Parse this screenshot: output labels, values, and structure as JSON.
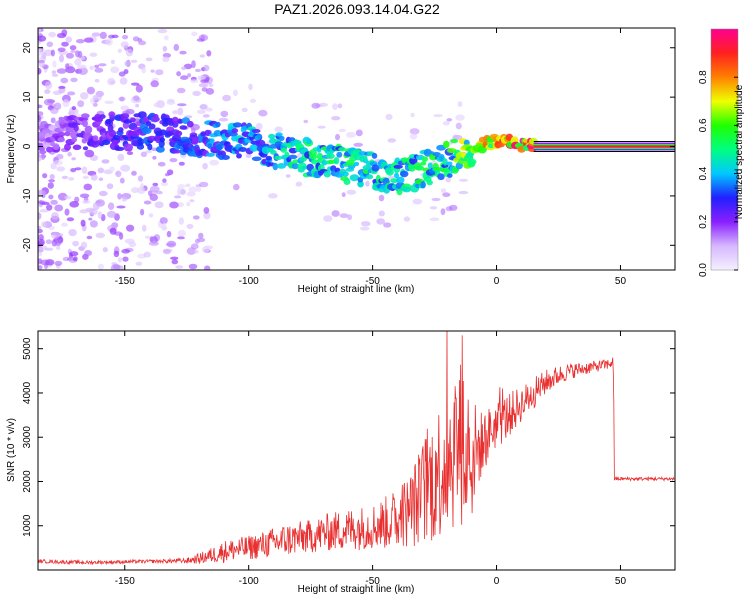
{
  "title": "PAZ1.2026.093.14.04.G22",
  "chart_data": [
    {
      "type": "heatmap",
      "xlabel": "Height of straight line (km)",
      "ylabel": "Frequency (Hz)",
      "xlim": [
        -185,
        72
      ],
      "ylim": [
        -25,
        24
      ],
      "xticks": [
        -150,
        -100,
        -50,
        0,
        50
      ],
      "xtick_labels": [
        "-150",
        "-100",
        "-50",
        "0",
        "50"
      ],
      "yticks": [
        -20,
        -10,
        0,
        10,
        20
      ],
      "ytick_labels": [
        "-20",
        "-10",
        "0",
        "10",
        "20"
      ],
      "colorbar": {
        "label": "Normalized spectral amplitude",
        "range": [
          0,
          1
        ],
        "ticks": [
          0.0,
          0.2,
          0.4,
          0.6,
          0.8
        ],
        "tick_labels": [
          "0.0",
          "0.2",
          "0.4",
          "0.6",
          "0.8"
        ],
        "colors": [
          "#f5f0ff",
          "#d6b8ff",
          "#8a20ff",
          "#2020ff",
          "#00c8ff",
          "#00ff80",
          "#20ff00",
          "#f0ff00",
          "#ff8000",
          "#ff2020",
          "#ff0090"
        ]
      },
      "ridge": {
        "x": [
          -185,
          -160,
          -140,
          -120,
          -100,
          -80,
          -60,
          -40,
          -20,
          -10,
          0,
          10,
          15,
          30,
          50,
          72
        ],
        "freq": [
          2,
          3,
          3,
          1.5,
          1,
          -2,
          -4,
          -6,
          -3,
          0,
          1,
          0.5,
          0,
          0,
          0,
          0
        ],
        "amplitude": [
          0.15,
          0.28,
          0.33,
          0.35,
          0.42,
          0.5,
          0.52,
          0.5,
          0.55,
          0.72,
          0.85,
          0.9,
          0.97,
          0.97,
          0.97,
          0.97
        ]
      }
    },
    {
      "type": "line",
      "xlabel": "Height of straight line (km)",
      "ylabel": "SNR (10 * v/v)",
      "xlim": [
        -185,
        72
      ],
      "ylim": [
        0,
        5400
      ],
      "xticks": [
        -150,
        -100,
        -50,
        0,
        50
      ],
      "xtick_labels": [
        "-150",
        "-100",
        "-50",
        "0",
        "50"
      ],
      "yticks": [
        1000,
        2000,
        3000,
        4000,
        5000
      ],
      "ytick_labels": [
        "1000",
        "2000",
        "3000",
        "4000",
        "5000"
      ],
      "color": "#e83030",
      "series": [
        {
          "name": "SNR",
          "x": [
            -185,
            -175,
            -165,
            -155,
            -145,
            -135,
            -125,
            -120,
            -115,
            -110,
            -105,
            -100,
            -95,
            -90,
            -85,
            -80,
            -75,
            -70,
            -65,
            -60,
            -55,
            -50,
            -45,
            -40,
            -35,
            -30,
            -25,
            -20,
            -15,
            -12,
            -10,
            -8,
            -5,
            -3,
            0,
            3,
            5,
            8,
            10,
            15,
            20,
            25,
            30,
            35,
            40,
            45,
            47,
            48,
            50,
            55,
            60,
            65,
            72
          ],
          "y": [
            200,
            180,
            170,
            180,
            190,
            200,
            210,
            260,
            330,
            420,
            470,
            500,
            560,
            620,
            680,
            720,
            760,
            830,
            880,
            920,
            950,
            990,
            1060,
            1180,
            1350,
            1700,
            2100,
            2500,
            2900,
            2850,
            2650,
            2700,
            2900,
            3100,
            3300,
            3400,
            3500,
            3650,
            3750,
            4000,
            4250,
            4400,
            4500,
            4550,
            4600,
            4650,
            4700,
            2050,
            2060,
            2050,
            2070,
            2060,
            2050
          ],
          "jitter": [
            40,
            40,
            40,
            40,
            40,
            40,
            60,
            120,
            180,
            250,
            260,
            280,
            300,
            340,
            380,
            380,
            380,
            420,
            450,
            480,
            500,
            520,
            600,
            700,
            850,
            1200,
            1500,
            1700,
            1900,
            1900,
            1700,
            900,
            700,
            600,
            550,
            550,
            500,
            450,
            400,
            350,
            280,
            220,
            180,
            150,
            130,
            120,
            120,
            40,
            40,
            40,
            40,
            40,
            40
          ]
        }
      ]
    }
  ]
}
